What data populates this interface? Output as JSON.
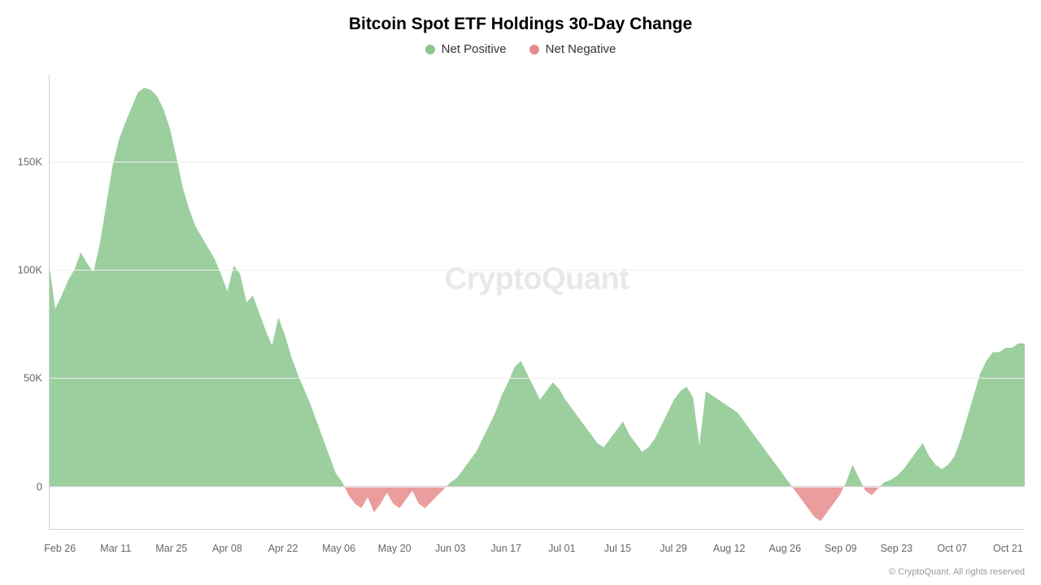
{
  "chart": {
    "type": "area",
    "title": "Bitcoin Spot ETF Holdings 30-Day Change",
    "title_fontsize": 21,
    "title_fontweight": 700,
    "title_color": "#000000",
    "watermark": "CryptoQuant",
    "watermark_color": "#e8e8e8",
    "watermark_fontsize": 38,
    "credit": "© CryptoQuant. All rights reserved",
    "credit_color": "#999999",
    "background_color": "#ffffff",
    "grid_color": "#f0f0f0",
    "axis_line_color": "#d0d0d0",
    "tick_label_color": "#666666",
    "series": [
      {
        "name": "Net Positive",
        "color": "#8bc78d"
      },
      {
        "name": "Net Negative",
        "color": "#e88b8b"
      }
    ],
    "legend": {
      "position": "top-center",
      "fontsize": 15,
      "dot_size": 12
    },
    "ylim": [
      -20000,
      190000
    ],
    "yticks": [
      0,
      50000,
      100000,
      150000
    ],
    "ytick_labels": [
      "0",
      "50K",
      "100K",
      "150K"
    ],
    "xticks": [
      "Feb 26",
      "Mar 11",
      "Mar 25",
      "Apr 08",
      "Apr 22",
      "May 06",
      "May 20",
      "Jun 03",
      "Jun 17",
      "Jul 01",
      "Jul 15",
      "Jul 29",
      "Aug 12",
      "Aug 26",
      "Sep 09",
      "Sep 23",
      "Oct 07",
      "Oct 21"
    ],
    "data": [
      104000,
      82000,
      88000,
      95000,
      100000,
      108000,
      103000,
      99000,
      112000,
      130000,
      148000,
      160000,
      168000,
      175000,
      182000,
      184000,
      183000,
      180000,
      174000,
      165000,
      152000,
      138000,
      128000,
      120000,
      115000,
      110000,
      105000,
      98000,
      90000,
      102000,
      98000,
      85000,
      88000,
      80000,
      72000,
      65000,
      78000,
      70000,
      60000,
      52000,
      45000,
      38000,
      30000,
      22000,
      14000,
      6000,
      2000,
      -4000,
      -8000,
      -10000,
      -5000,
      -12000,
      -8000,
      -3000,
      -8000,
      -10000,
      -6000,
      -2000,
      -8000,
      -10000,
      -7000,
      -4000,
      -1000,
      2000,
      4000,
      8000,
      12000,
      16000,
      22000,
      28000,
      34000,
      42000,
      48000,
      55000,
      58000,
      52000,
      46000,
      40000,
      44000,
      48000,
      45000,
      40000,
      36000,
      32000,
      28000,
      24000,
      20000,
      18000,
      22000,
      26000,
      30000,
      24000,
      20000,
      16000,
      18000,
      22000,
      28000,
      34000,
      40000,
      44000,
      46000,
      41000,
      19000,
      44000,
      42000,
      40000,
      38000,
      36000,
      34000,
      30000,
      26000,
      22000,
      18000,
      14000,
      10000,
      6000,
      2000,
      -2000,
      -6000,
      -10000,
      -14000,
      -16000,
      -12000,
      -8000,
      -4000,
      2000,
      10000,
      4000,
      -2000,
      -4000,
      -1000,
      2000,
      3000,
      5000,
      8000,
      12000,
      16000,
      20000,
      14000,
      10000,
      8000,
      10000,
      14000,
      22000,
      32000,
      42000,
      52000,
      58000,
      62000,
      62000,
      64000,
      64000,
      66000,
      66000
    ]
  }
}
